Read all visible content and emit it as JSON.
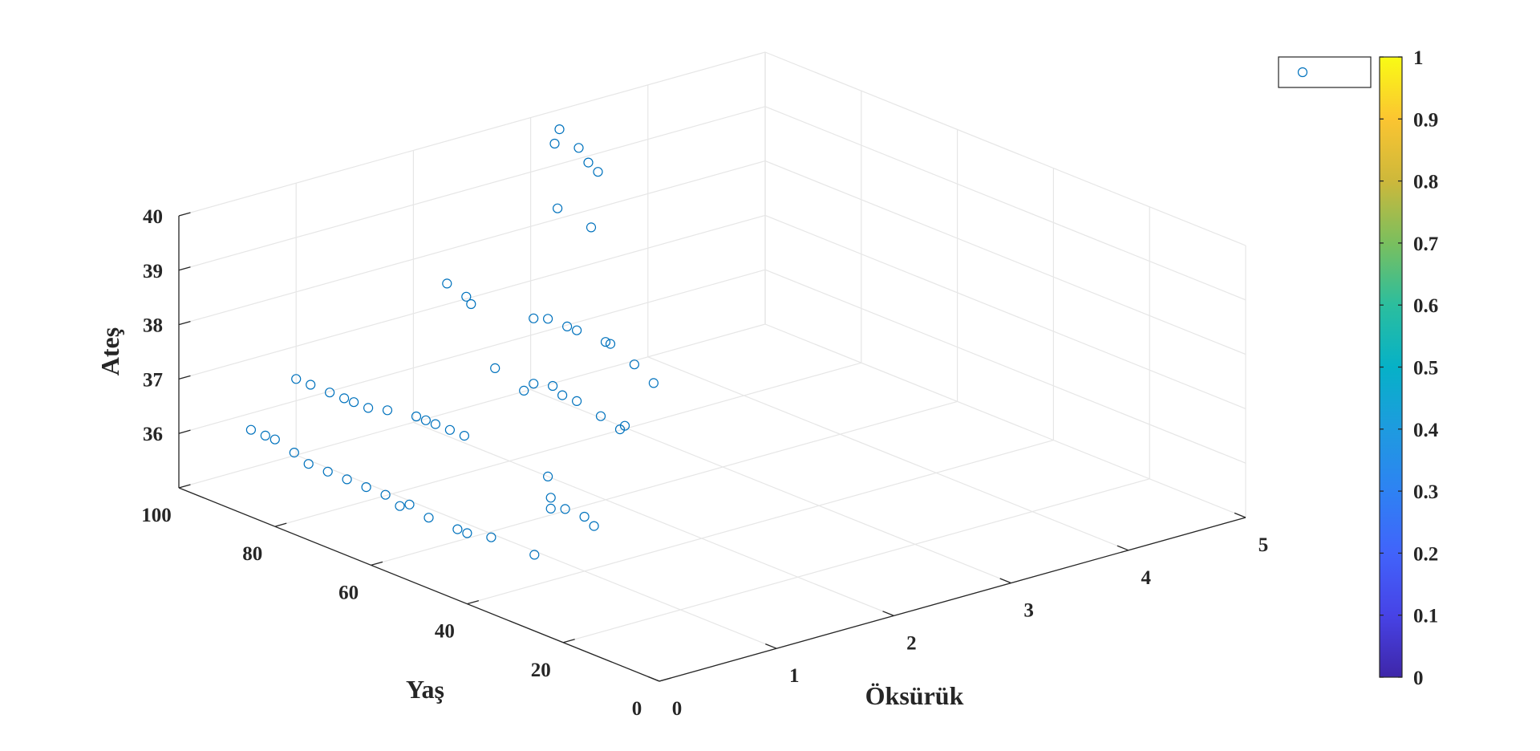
{
  "chart_data": {
    "type": "scatter",
    "view": "3d",
    "axes": {
      "x": {
        "label": "Öksürük",
        "lim": [
          0,
          5
        ],
        "ticks": [
          0,
          1,
          2,
          3,
          4,
          5
        ]
      },
      "y": {
        "label": "Yaş",
        "lim": [
          0,
          100
        ],
        "ticks": [
          0,
          20,
          40,
          60,
          80,
          100
        ]
      },
      "z": {
        "label": "Ateş",
        "lim": [
          35,
          40
        ],
        "ticks": [
          36,
          37,
          38,
          39,
          40
        ]
      }
    },
    "grid": true,
    "legend": {
      "placement": "top-right",
      "entries": [
        ""
      ]
    },
    "colorbar": {
      "min": 0,
      "max": 1,
      "ticks": [
        "0",
        "0.1",
        "0.2",
        "0.3",
        "0.4",
        "0.5",
        "0.6",
        "0.7",
        "0.8",
        "0.9",
        "1"
      ]
    },
    "marker_color": "#0072bd",
    "series": [
      {
        "points": [
          [
            2,
            70,
            40.0
          ],
          [
            2,
            63,
            39.9
          ],
          [
            3,
            94,
            40.0
          ],
          [
            3,
            90,
            39.8
          ],
          [
            3,
            95,
            39.7
          ],
          [
            3,
            88,
            39.6
          ],
          [
            3,
            86,
            39.5
          ],
          [
            2,
            93,
            37.8
          ],
          [
            2,
            88,
            37.6
          ],
          [
            2,
            89,
            37.7
          ],
          [
            2,
            75,
            37.8
          ],
          [
            2,
            72,
            37.9
          ],
          [
            2,
            68,
            37.9
          ],
          [
            2,
            66,
            37.9
          ],
          [
            2,
            60,
            37.9
          ],
          [
            2,
            59,
            37.9
          ],
          [
            2,
            54,
            37.7
          ],
          [
            2,
            50,
            37.5
          ],
          [
            2,
            83,
            36.6
          ],
          [
            2,
            77,
            36.4
          ],
          [
            2,
            75,
            36.6
          ],
          [
            2,
            71,
            36.7
          ],
          [
            2,
            69,
            36.6
          ],
          [
            2,
            66,
            36.6
          ],
          [
            2,
            61,
            36.5
          ],
          [
            2,
            57,
            36.4
          ],
          [
            2,
            56,
            36.5
          ],
          [
            2,
            72,
            35.0
          ],
          [
            1,
            100,
            36.4
          ],
          [
            1,
            97,
            36.4
          ],
          [
            1,
            93,
            36.4
          ],
          [
            1,
            90,
            36.4
          ],
          [
            1,
            88,
            36.4
          ],
          [
            1,
            85,
            36.4
          ],
          [
            1,
            81,
            36.5
          ],
          [
            1,
            75,
            36.6
          ],
          [
            1,
            73,
            36.6
          ],
          [
            1,
            71,
            36.6
          ],
          [
            1,
            68,
            36.6
          ],
          [
            1,
            65,
            36.6
          ],
          [
            1,
            47,
            36.1
          ],
          [
            1,
            47,
            35.9
          ],
          [
            1,
            44,
            36.0
          ],
          [
            1,
            40,
            36.0
          ],
          [
            1,
            38,
            35.9
          ],
          [
            0,
            85,
            36.6
          ],
          [
            0,
            82,
            36.6
          ],
          [
            0,
            80,
            36.6
          ],
          [
            0,
            76,
            36.5
          ],
          [
            0,
            73,
            36.4
          ],
          [
            0,
            69,
            36.4
          ],
          [
            0,
            65,
            36.4
          ],
          [
            0,
            61,
            36.4
          ],
          [
            0,
            57,
            36.4
          ],
          [
            0,
            54,
            36.3
          ],
          [
            0,
            52,
            36.4
          ],
          [
            0,
            48,
            36.3
          ],
          [
            0,
            42,
            36.3
          ],
          [
            0,
            40,
            36.3
          ],
          [
            0,
            35,
            36.4
          ],
          [
            0,
            26,
            36.4
          ]
        ]
      }
    ]
  }
}
